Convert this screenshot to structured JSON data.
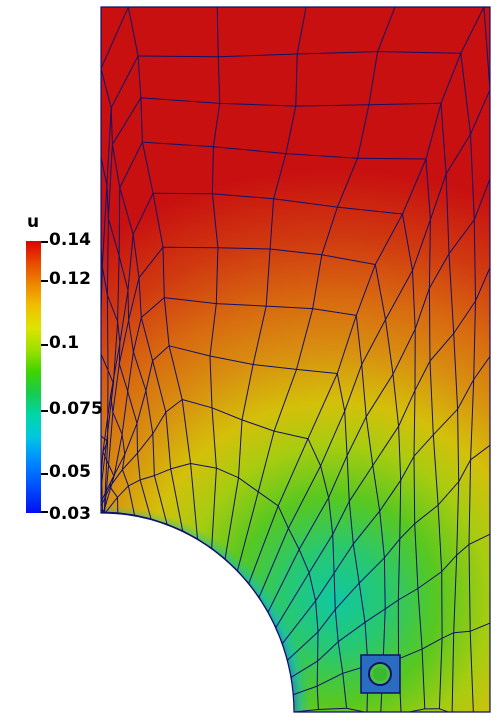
{
  "colorbar": {
    "title": "u",
    "ticks": [
      "0.14",
      "0.12",
      "0.1",
      "0.075",
      "0.05",
      "0.03"
    ],
    "colors": [
      "#e00000",
      "#ee8800",
      "#dde400",
      "#3fd400",
      "#00d6a8",
      "#0050ff"
    ]
  },
  "mesh": {
    "line_color": "#10106a",
    "field_colors": {
      "high": "#c81010",
      "mid": "#d86a10",
      "yellow": "#d4c00a",
      "green": "#58c820",
      "cyan": "#10c8a0",
      "blue": "#1040e0"
    }
  }
}
